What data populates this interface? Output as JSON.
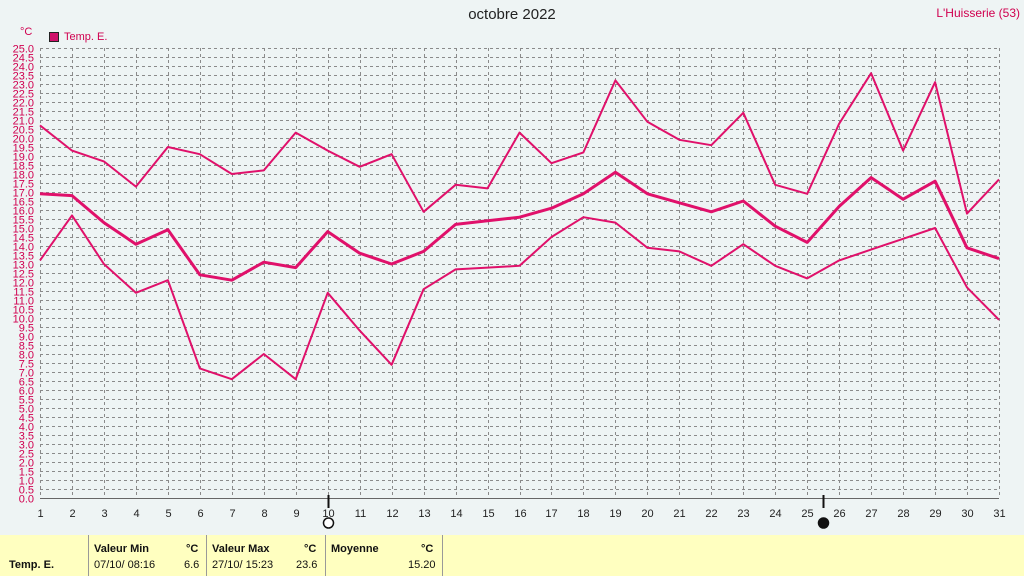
{
  "header": {
    "title": "octobre 2022",
    "station": "L'Huisserie (53)",
    "unit": "°C",
    "legend_label": "Temp. E."
  },
  "colors": {
    "series": "#e0106a",
    "grid": "#8a8a8a",
    "axis_text": "#d0004f"
  },
  "chart_data": {
    "type": "line",
    "title": "octobre 2022",
    "ylabel": "°C",
    "ylim": [
      0,
      25
    ],
    "y_tick_step": 0.5,
    "y_label_step": 1,
    "x": [
      1,
      2,
      3,
      4,
      5,
      6,
      7,
      8,
      9,
      10,
      11,
      12,
      13,
      14,
      15,
      16,
      17,
      18,
      19,
      20,
      21,
      22,
      23,
      24,
      25,
      26,
      27,
      28,
      29,
      30,
      31
    ],
    "moon_phases": [
      {
        "day": 10,
        "phase": "full"
      },
      {
        "day": 25.5,
        "phase": "new"
      }
    ],
    "series": [
      {
        "role": "max",
        "values": [
          20.7,
          19.3,
          18.7,
          17.3,
          19.5,
          19.1,
          18.0,
          18.2,
          20.3,
          19.3,
          18.4,
          19.1,
          15.9,
          17.4,
          17.2,
          20.3,
          18.6,
          19.2,
          23.2,
          20.9,
          19.9,
          19.6,
          21.4,
          17.4,
          16.9,
          20.8,
          23.6,
          19.3,
          23.1,
          15.8,
          17.7
        ]
      },
      {
        "role": "mean",
        "values": [
          16.9,
          16.8,
          15.3,
          14.1,
          14.9,
          12.4,
          12.1,
          13.1,
          12.8,
          14.8,
          13.6,
          13.0,
          13.7,
          15.2,
          15.4,
          15.6,
          16.1,
          16.9,
          18.1,
          16.9,
          16.4,
          15.9,
          16.5,
          15.1,
          14.2,
          16.2,
          17.8,
          16.6,
          17.6,
          13.9,
          13.3
        ]
      },
      {
        "role": "min",
        "values": [
          13.2,
          15.7,
          13.0,
          11.4,
          12.1,
          7.2,
          6.6,
          8.0,
          6.6,
          11.4,
          9.3,
          7.4,
          11.6,
          12.7,
          12.8,
          12.9,
          14.5,
          15.6,
          15.3,
          13.9,
          13.7,
          12.9,
          14.1,
          12.9,
          12.2,
          13.2,
          13.8,
          14.4,
          15.0,
          11.7,
          9.9
        ]
      }
    ]
  },
  "footer": {
    "series_name": "Temp. E.",
    "min_header": "Valeur Min",
    "min_unit": "°C",
    "min_date": "07/10/  08:16",
    "min_value": "6.6",
    "max_header": "Valeur Max",
    "max_unit": "°C",
    "max_date": "27/10/  15:23",
    "max_value": "23.6",
    "avg_header": "Moyenne",
    "avg_unit": "°C",
    "avg_value": "15.20"
  }
}
